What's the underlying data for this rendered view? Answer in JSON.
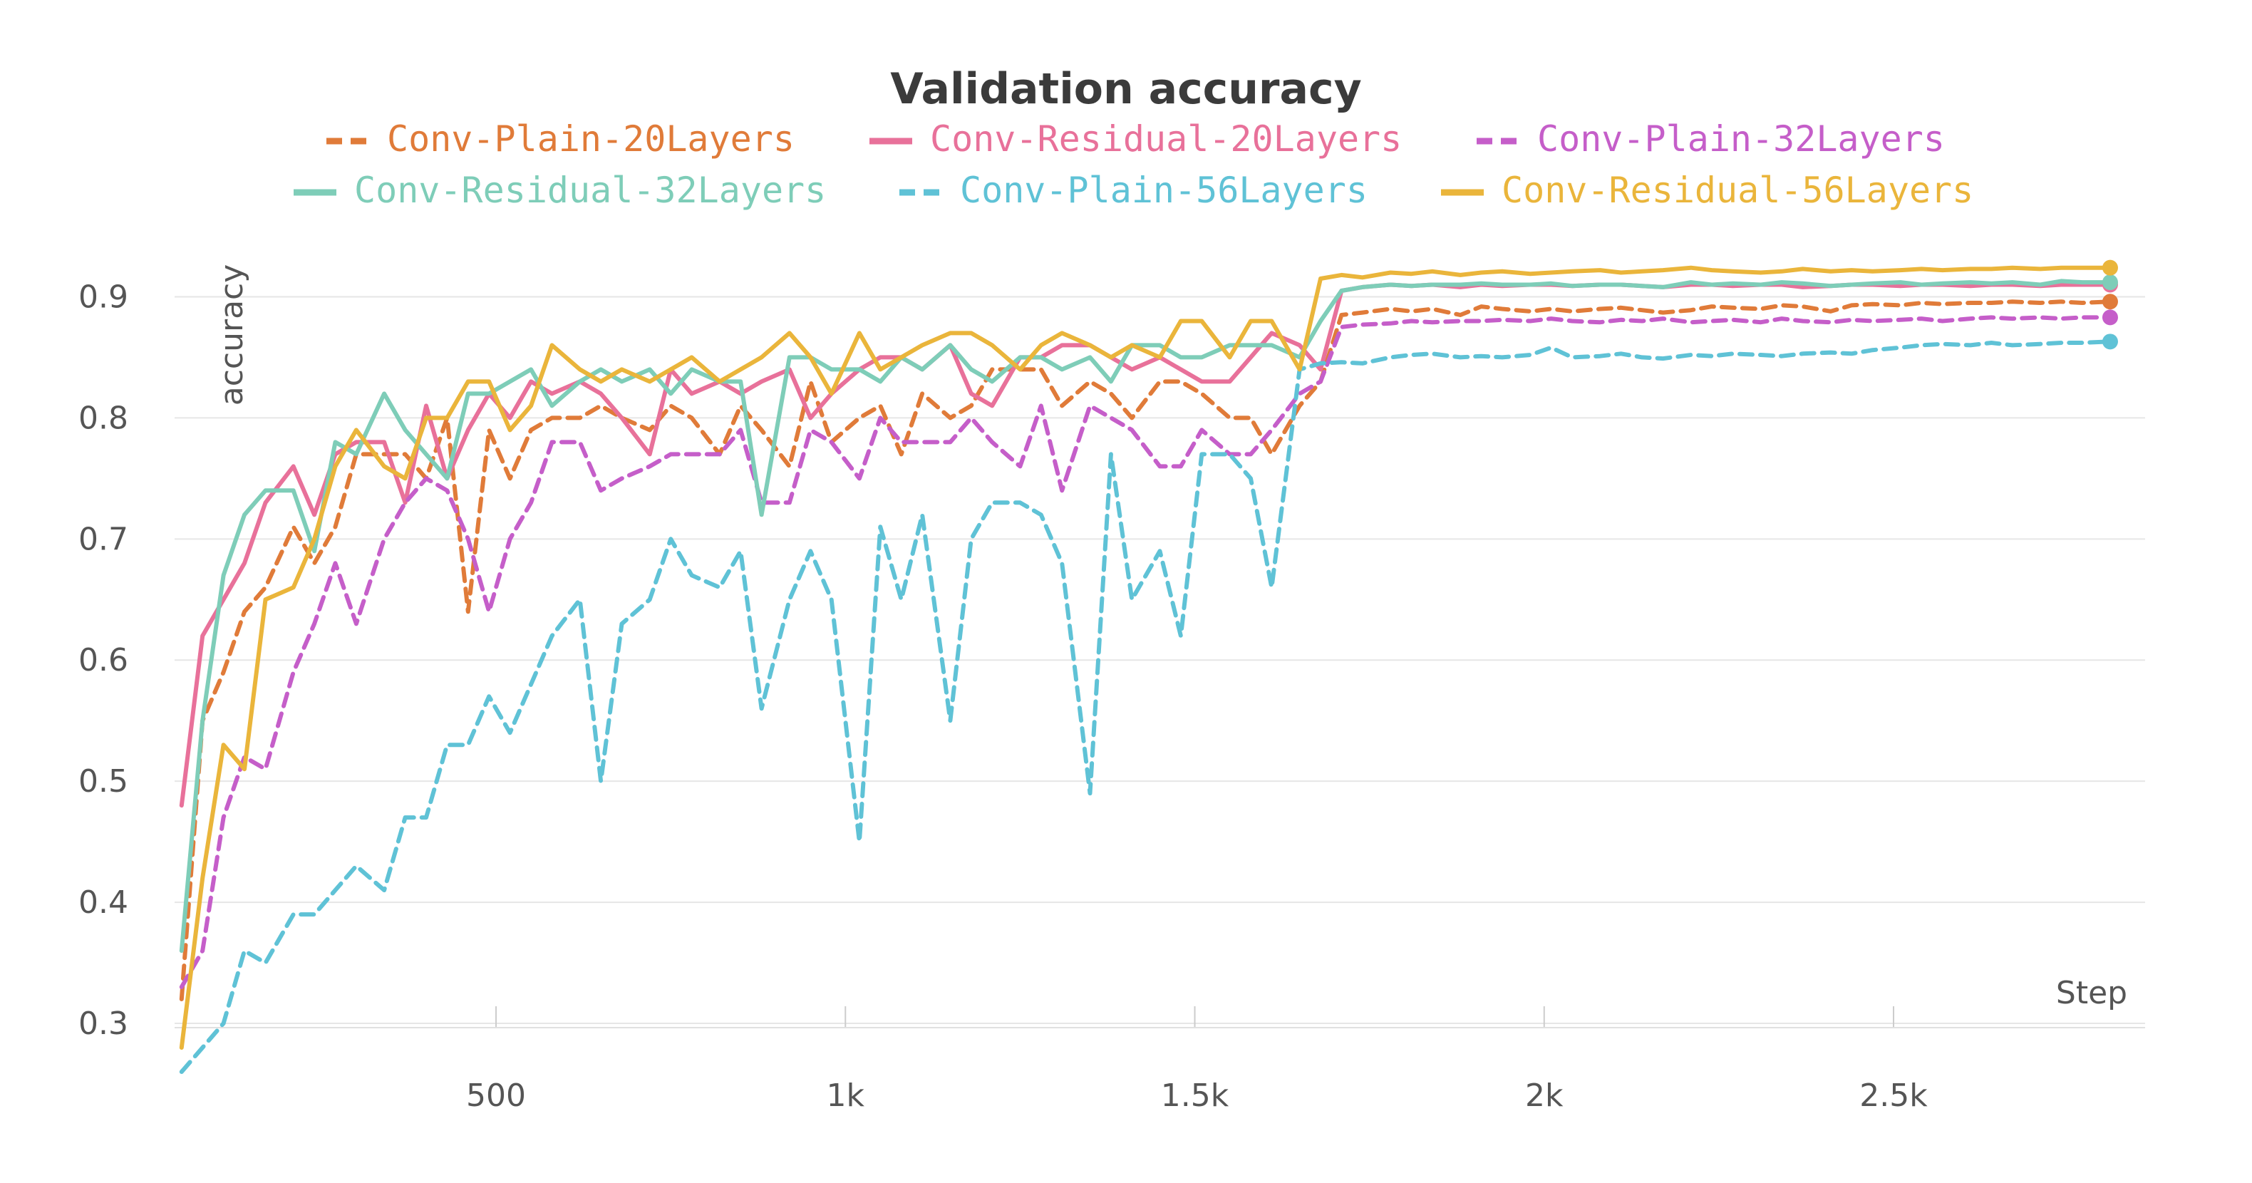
{
  "chart_data": {
    "type": "line",
    "title": "Validation accuracy",
    "xlabel": "Step",
    "ylabel": "accuracy",
    "xlim": [
      40,
      2860
    ],
    "ylim": [
      0.28,
      0.945
    ],
    "x_ticks": [
      500,
      1000,
      1500,
      2000,
      2500
    ],
    "x_tick_labels": [
      "500",
      "1k",
      "1.5k",
      "2k",
      "2.5k"
    ],
    "y_ticks": [
      0.3,
      0.4,
      0.5,
      0.6,
      0.7,
      0.8,
      0.9
    ],
    "y_tick_labels": [
      "0.3",
      "0.4",
      "0.5",
      "0.6",
      "0.7",
      "0.8",
      "0.9"
    ],
    "grid": true,
    "legend_position": "top",
    "x": [
      50,
      80,
      110,
      140,
      170,
      210,
      240,
      270,
      300,
      340,
      370,
      400,
      430,
      460,
      490,
      520,
      550,
      580,
      620,
      650,
      680,
      720,
      750,
      780,
      820,
      850,
      880,
      920,
      950,
      980,
      1020,
      1050,
      1080,
      1110,
      1150,
      1180,
      1210,
      1250,
      1280,
      1310,
      1350,
      1380,
      1410,
      1450,
      1480,
      1510,
      1550,
      1580,
      1610,
      1650,
      1680,
      1710,
      1740,
      1780,
      1810,
      1840,
      1880,
      1910,
      1940,
      1980,
      2010,
      2040,
      2080,
      2110,
      2140,
      2170,
      2210,
      2240,
      2270,
      2310,
      2340,
      2370,
      2410,
      2440,
      2470,
      2510,
      2540,
      2570,
      2610,
      2640,
      2670,
      2710,
      2740,
      2770,
      2810
    ],
    "series": [
      {
        "name": "Conv-Plain-20Layers",
        "color": "#e07b39",
        "dash": true,
        "values": [
          0.32,
          0.55,
          0.59,
          0.64,
          0.66,
          0.71,
          0.68,
          0.71,
          0.77,
          0.77,
          0.77,
          0.75,
          0.8,
          0.64,
          0.79,
          0.75,
          0.79,
          0.8,
          0.8,
          0.81,
          0.8,
          0.79,
          0.81,
          0.8,
          0.77,
          0.81,
          0.79,
          0.76,
          0.83,
          0.78,
          0.8,
          0.81,
          0.77,
          0.82,
          0.8,
          0.81,
          0.84,
          0.84,
          0.84,
          0.81,
          0.83,
          0.82,
          0.8,
          0.83,
          0.83,
          0.82,
          0.8,
          0.8,
          0.77,
          0.81,
          0.83,
          0.885,
          0.887,
          0.89,
          0.888,
          0.89,
          0.885,
          0.892,
          0.89,
          0.888,
          0.89,
          0.888,
          0.89,
          0.891,
          0.889,
          0.887,
          0.889,
          0.892,
          0.891,
          0.89,
          0.893,
          0.892,
          0.888,
          0.893,
          0.894,
          0.893,
          0.895,
          0.894,
          0.895,
          0.895,
          0.896,
          0.895,
          0.896,
          0.895,
          0.896
        ]
      },
      {
        "name": "Conv-Residual-20Layers",
        "color": "#e8719a",
        "dash": false,
        "values": [
          0.48,
          0.62,
          0.65,
          0.68,
          0.73,
          0.76,
          0.72,
          0.77,
          0.78,
          0.78,
          0.73,
          0.81,
          0.75,
          0.79,
          0.82,
          0.8,
          0.83,
          0.82,
          0.83,
          0.82,
          0.8,
          0.77,
          0.84,
          0.82,
          0.83,
          0.82,
          0.83,
          0.84,
          0.8,
          0.82,
          0.84,
          0.85,
          0.85,
          0.84,
          0.86,
          0.82,
          0.81,
          0.85,
          0.85,
          0.86,
          0.86,
          0.85,
          0.84,
          0.85,
          0.84,
          0.83,
          0.83,
          0.85,
          0.87,
          0.86,
          0.84,
          0.905,
          0.908,
          0.91,
          0.909,
          0.91,
          0.908,
          0.91,
          0.909,
          0.91,
          0.91,
          0.909,
          0.91,
          0.91,
          0.909,
          0.908,
          0.91,
          0.91,
          0.909,
          0.91,
          0.91,
          0.908,
          0.909,
          0.91,
          0.91,
          0.909,
          0.91,
          0.91,
          0.909,
          0.91,
          0.91,
          0.909,
          0.91,
          0.91,
          0.91
        ]
      },
      {
        "name": "Conv-Plain-32Layers",
        "color": "#c55ec9",
        "dash": true,
        "values": [
          0.33,
          0.36,
          0.47,
          0.52,
          0.51,
          0.59,
          0.63,
          0.68,
          0.63,
          0.7,
          0.73,
          0.75,
          0.74,
          0.7,
          0.64,
          0.7,
          0.73,
          0.78,
          0.78,
          0.74,
          0.75,
          0.76,
          0.77,
          0.77,
          0.77,
          0.79,
          0.73,
          0.73,
          0.79,
          0.78,
          0.75,
          0.8,
          0.78,
          0.78,
          0.78,
          0.8,
          0.78,
          0.76,
          0.81,
          0.74,
          0.81,
          0.8,
          0.79,
          0.76,
          0.76,
          0.79,
          0.77,
          0.77,
          0.79,
          0.82,
          0.83,
          0.875,
          0.877,
          0.878,
          0.88,
          0.879,
          0.88,
          0.88,
          0.881,
          0.88,
          0.882,
          0.88,
          0.879,
          0.881,
          0.88,
          0.882,
          0.879,
          0.88,
          0.881,
          0.879,
          0.882,
          0.88,
          0.879,
          0.881,
          0.88,
          0.881,
          0.882,
          0.88,
          0.882,
          0.883,
          0.882,
          0.883,
          0.882,
          0.883,
          0.883
        ]
      },
      {
        "name": "Conv-Residual-32Layers",
        "color": "#7ecdb8",
        "dash": false,
        "values": [
          0.36,
          0.55,
          0.67,
          0.72,
          0.74,
          0.74,
          0.69,
          0.78,
          0.77,
          0.82,
          0.79,
          0.77,
          0.75,
          0.82,
          0.82,
          0.83,
          0.84,
          0.81,
          0.83,
          0.84,
          0.83,
          0.84,
          0.82,
          0.84,
          0.83,
          0.83,
          0.72,
          0.85,
          0.85,
          0.84,
          0.84,
          0.83,
          0.85,
          0.84,
          0.86,
          0.84,
          0.83,
          0.85,
          0.85,
          0.84,
          0.85,
          0.83,
          0.86,
          0.86,
          0.85,
          0.85,
          0.86,
          0.86,
          0.86,
          0.85,
          0.88,
          0.905,
          0.908,
          0.91,
          0.909,
          0.91,
          0.91,
          0.911,
          0.91,
          0.91,
          0.911,
          0.909,
          0.91,
          0.91,
          0.909,
          0.908,
          0.912,
          0.91,
          0.911,
          0.91,
          0.912,
          0.911,
          0.909,
          0.91,
          0.911,
          0.912,
          0.91,
          0.911,
          0.912,
          0.911,
          0.912,
          0.91,
          0.913,
          0.912,
          0.912
        ]
      },
      {
        "name": "Conv-Plain-56Layers",
        "color": "#5fc2d6",
        "dash": true,
        "values": [
          0.26,
          0.28,
          0.3,
          0.36,
          0.35,
          0.39,
          0.39,
          0.41,
          0.43,
          0.41,
          0.47,
          0.47,
          0.53,
          0.53,
          0.57,
          0.54,
          0.58,
          0.62,
          0.65,
          0.5,
          0.63,
          0.65,
          0.7,
          0.67,
          0.66,
          0.69,
          0.56,
          0.65,
          0.69,
          0.65,
          0.45,
          0.71,
          0.65,
          0.72,
          0.55,
          0.7,
          0.73,
          0.73,
          0.72,
          0.68,
          0.49,
          0.77,
          0.65,
          0.69,
          0.62,
          0.77,
          0.77,
          0.75,
          0.66,
          0.84,
          0.845,
          0.846,
          0.845,
          0.85,
          0.852,
          0.853,
          0.85,
          0.851,
          0.85,
          0.852,
          0.858,
          0.85,
          0.851,
          0.853,
          0.85,
          0.849,
          0.852,
          0.851,
          0.853,
          0.852,
          0.851,
          0.853,
          0.854,
          0.853,
          0.856,
          0.858,
          0.86,
          0.861,
          0.86,
          0.862,
          0.86,
          0.861,
          0.862,
          0.862,
          0.863
        ]
      },
      {
        "name": "Conv-Residual-56Layers",
        "color": "#eab53b",
        "dash": false,
        "values": [
          0.28,
          0.42,
          0.53,
          0.51,
          0.65,
          0.66,
          0.7,
          0.76,
          0.79,
          0.76,
          0.75,
          0.8,
          0.8,
          0.83,
          0.83,
          0.79,
          0.81,
          0.86,
          0.84,
          0.83,
          0.84,
          0.83,
          0.84,
          0.85,
          0.83,
          0.84,
          0.85,
          0.87,
          0.85,
          0.82,
          0.87,
          0.84,
          0.85,
          0.86,
          0.87,
          0.87,
          0.86,
          0.84,
          0.86,
          0.87,
          0.86,
          0.85,
          0.86,
          0.85,
          0.88,
          0.88,
          0.85,
          0.88,
          0.88,
          0.84,
          0.915,
          0.918,
          0.916,
          0.92,
          0.919,
          0.921,
          0.918,
          0.92,
          0.921,
          0.919,
          0.92,
          0.921,
          0.922,
          0.92,
          0.921,
          0.922,
          0.924,
          0.922,
          0.921,
          0.92,
          0.921,
          0.923,
          0.921,
          0.922,
          0.921,
          0.922,
          0.923,
          0.922,
          0.923,
          0.923,
          0.924,
          0.923,
          0.924,
          0.924,
          0.924
        ]
      }
    ]
  }
}
